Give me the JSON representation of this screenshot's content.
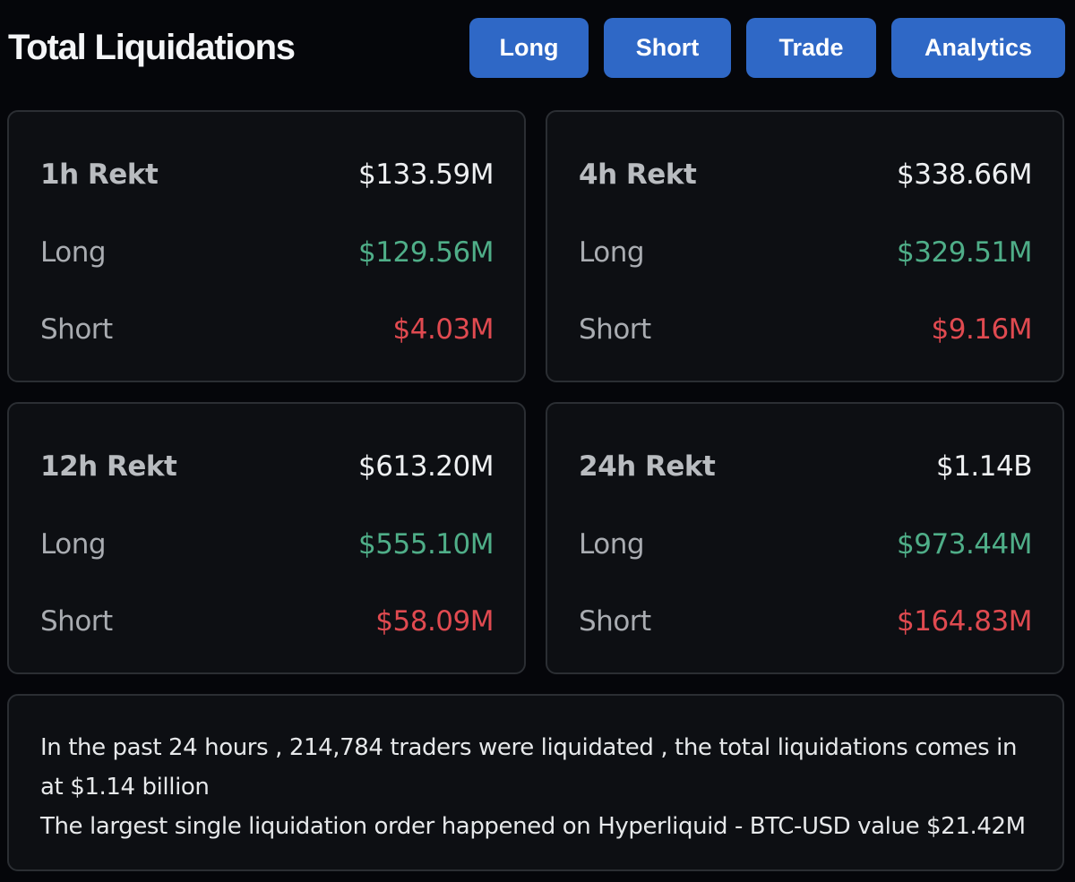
{
  "header": {
    "title": "Total Liquidations",
    "buttons": {
      "long": "Long",
      "short": "Short",
      "trade": "Trade",
      "analytics": "Analytics"
    }
  },
  "colors": {
    "button_bg": "#2f68c6",
    "long": "#4fae88",
    "short": "#e04a50",
    "background": "#05060a",
    "card_bg": "#0d0f13"
  },
  "cards": [
    {
      "period_label": "1h Rekt",
      "total": "$133.59M",
      "long_label": "Long",
      "long": "$129.56M",
      "short_label": "Short",
      "short": "$4.03M"
    },
    {
      "period_label": "4h Rekt",
      "total": "$338.66M",
      "long_label": "Long",
      "long": "$329.51M",
      "short_label": "Short",
      "short": "$9.16M"
    },
    {
      "period_label": "12h Rekt",
      "total": "$613.20M",
      "long_label": "Long",
      "long": "$555.10M",
      "short_label": "Short",
      "short": "$58.09M"
    },
    {
      "period_label": "24h Rekt",
      "total": "$1.14B",
      "long_label": "Long",
      "long": "$973.44M",
      "short_label": "Short",
      "short": "$164.83M"
    }
  ],
  "summary": {
    "line1": "In the past 24 hours , 214,784 traders were liquidated , the total liquidations comes in at $1.14 billion",
    "line2": "The largest single liquidation order happened on Hyperliquid - BTC-USD value $21.42M"
  }
}
